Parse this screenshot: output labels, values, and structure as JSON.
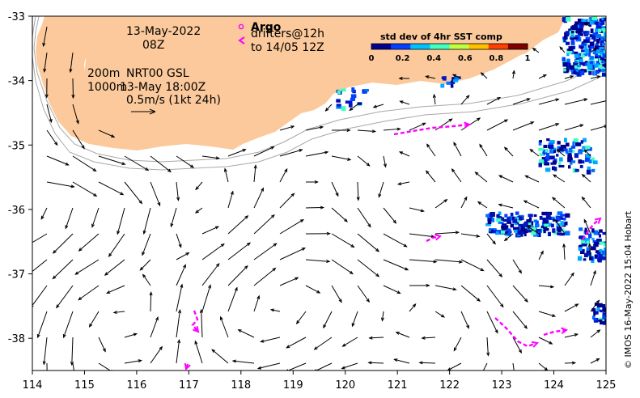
{
  "map": {
    "lon_range": [
      114,
      125
    ],
    "lat_range": [
      -38.5,
      -33
    ],
    "x_ticks": [
      "114",
      "115",
      "116",
      "117",
      "118",
      "119",
      "120",
      "121",
      "122",
      "123",
      "124",
      "125"
    ],
    "y_ticks": [
      "-33",
      "-34",
      "-35",
      "-36",
      "-37",
      "-38"
    ],
    "colors": {
      "land": "#fbc99b",
      "arrow": "#000000",
      "drifter": "#ff00ff",
      "contour": "#a8a8a8"
    }
  },
  "annotations": {
    "date": "13-May-2022",
    "hour": "08Z",
    "depth_line": "200m",
    "product": "NRT00 GSL",
    "depth_line2": "1000m",
    "analysis_time": "13-May 18:00Z",
    "scale": "0.5m/s (1kt 24h)"
  },
  "legend": {
    "argo_label": "Argo",
    "drifter_label1": "drifters@12h",
    "drifter_label2": "to 14/05 12Z"
  },
  "colorbar": {
    "title": "std dev of 4hr SST comp",
    "ticks": [
      "0",
      "0.2",
      "0.4",
      "0.6",
      "0.8",
      "1"
    ],
    "colors": [
      "#00008f",
      "#0040ff",
      "#00c0ff",
      "#40ffbf",
      "#c0ff40",
      "#ffc000",
      "#ff4000",
      "#800000"
    ]
  },
  "credit": "© IMOS 16-May-2022 15:04 Hobart"
}
